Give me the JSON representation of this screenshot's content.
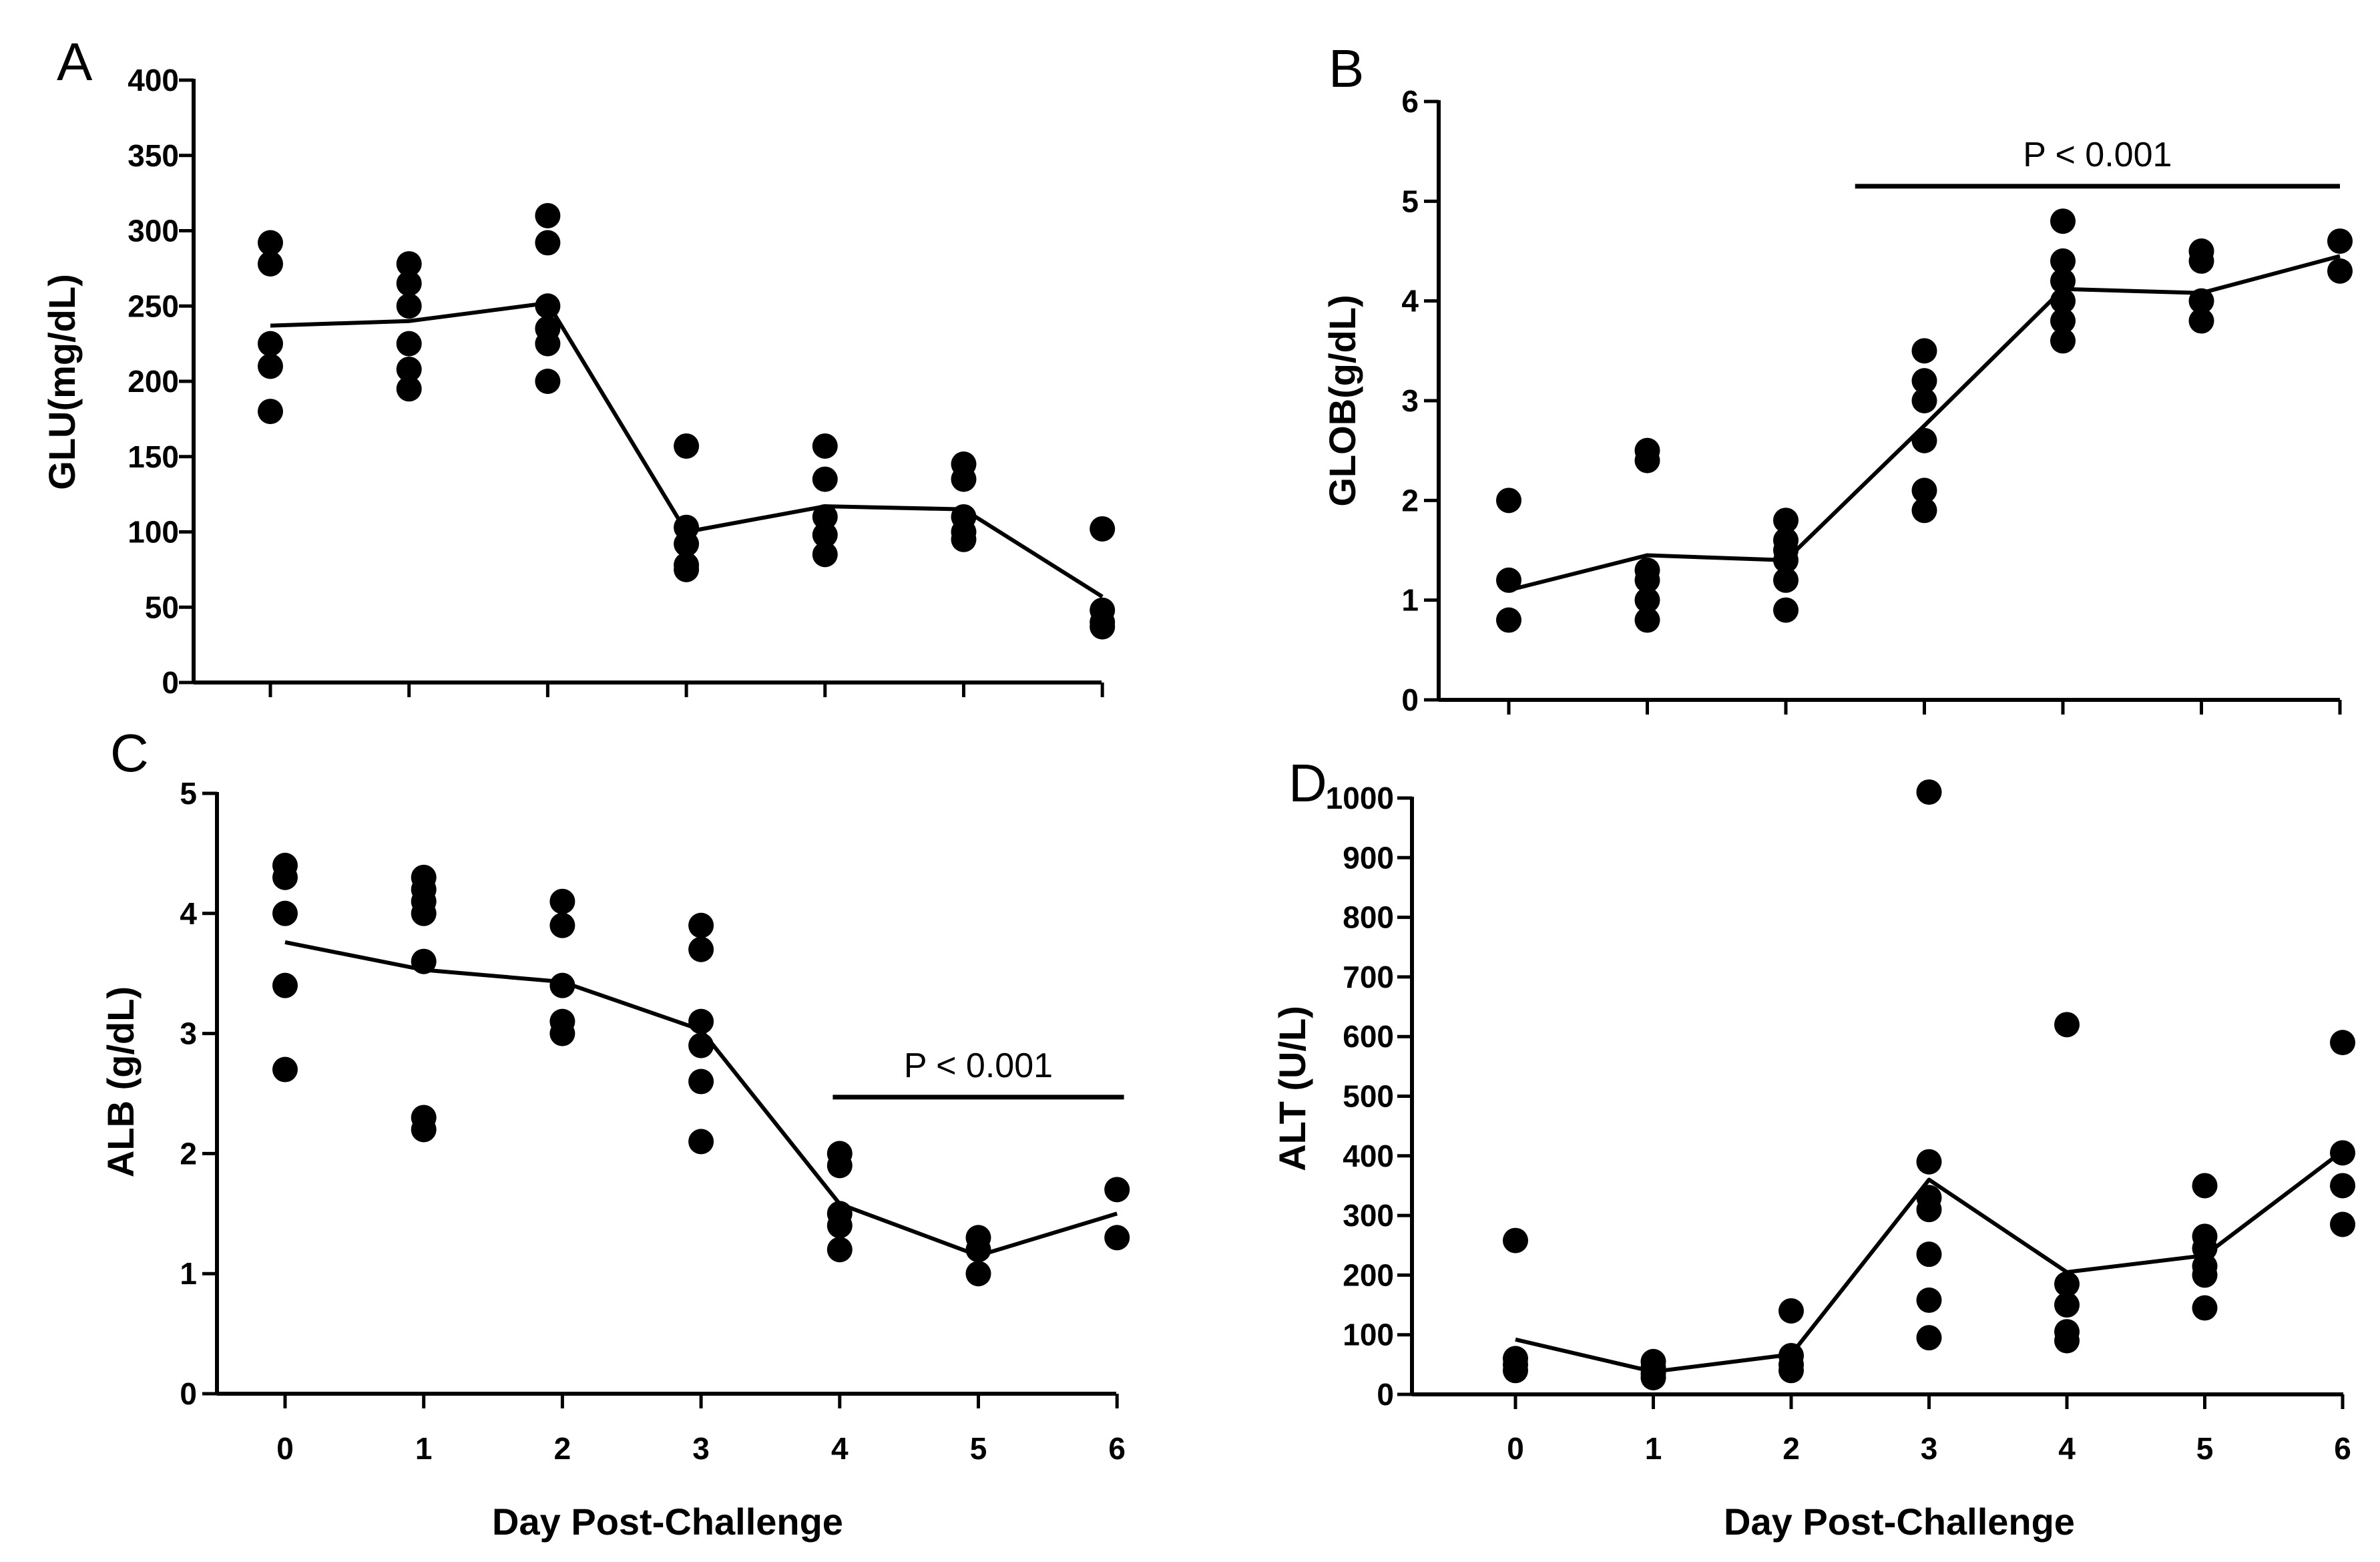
{
  "chart_data": [
    {
      "type": "scatter",
      "panel": "A",
      "ylabel": "GLU(mg/dL)",
      "xlabel": "",
      "ylim": [
        0,
        400
      ],
      "yticks": [
        0,
        50,
        100,
        150,
        200,
        250,
        300,
        350,
        400
      ],
      "ytick_labels": [
        "0",
        "50",
        "100",
        "150",
        "200",
        "250",
        "300",
        "350",
        "400"
      ],
      "x_categories": [
        0,
        1,
        2,
        3,
        4,
        5,
        6
      ],
      "xtick_labels": [],
      "points": [
        {
          "x": 0,
          "y": [
            292,
            278,
            225,
            210,
            180
          ]
        },
        {
          "x": 1,
          "y": [
            278,
            265,
            250,
            225,
            208,
            195
          ]
        },
        {
          "x": 2,
          "y": [
            310,
            292,
            250,
            235,
            225,
            200
          ]
        },
        {
          "x": 3,
          "y": [
            157,
            103,
            92,
            78,
            75
          ]
        },
        {
          "x": 4,
          "y": [
            157,
            135,
            110,
            98,
            85
          ]
        },
        {
          "x": 5,
          "y": [
            145,
            135,
            110,
            100,
            95
          ]
        },
        {
          "x": 6,
          "y": [
            102,
            48,
            40,
            37
          ]
        }
      ],
      "mean_line": [
        237,
        240,
        252,
        100,
        117,
        115,
        57
      ],
      "significance": []
    },
    {
      "type": "scatter",
      "panel": "B",
      "ylabel": "GLOB(g/dL)",
      "xlabel": "",
      "ylim": [
        0,
        6
      ],
      "yticks": [
        0,
        1,
        2,
        3,
        4,
        5,
        6
      ],
      "ytick_labels": [
        "0",
        "1",
        "2",
        "3",
        "4",
        "5",
        "6"
      ],
      "x_categories": [
        0,
        1,
        2,
        3,
        4,
        5,
        6
      ],
      "xtick_labels": [],
      "points": [
        {
          "x": 0,
          "y": [
            2.0,
            1.2,
            0.8
          ]
        },
        {
          "x": 1,
          "y": [
            2.5,
            2.4,
            1.3,
            1.2,
            1.0,
            0.8
          ]
        },
        {
          "x": 2,
          "y": [
            1.8,
            1.6,
            1.5,
            1.4,
            1.2,
            0.9
          ]
        },
        {
          "x": 3,
          "y": [
            3.5,
            3.2,
            3.0,
            2.6,
            2.1,
            1.9
          ]
        },
        {
          "x": 4,
          "y": [
            4.8,
            4.4,
            4.2,
            4.0,
            3.8,
            3.6
          ]
        },
        {
          "x": 5,
          "y": [
            4.5,
            4.4,
            4.0,
            3.8
          ]
        },
        {
          "x": 6,
          "y": [
            4.6,
            4.3
          ]
        }
      ],
      "mean_line": [
        1.1,
        1.45,
        1.4,
        2.75,
        4.12,
        4.08,
        4.45
      ],
      "significance": [
        {
          "from_x": 2.5,
          "to_x": 6,
          "y": 5.15,
          "label": "P < 0.001"
        }
      ]
    },
    {
      "type": "scatter",
      "panel": "C",
      "ylabel": "ALB (g/dL)",
      "xlabel": "Day Post-Challenge",
      "ylim": [
        0,
        5
      ],
      "yticks": [
        0,
        1,
        2,
        3,
        4,
        5
      ],
      "ytick_labels": [
        "0",
        "1",
        "2",
        "3",
        "4",
        "5"
      ],
      "x_categories": [
        0,
        1,
        2,
        3,
        4,
        5,
        6
      ],
      "xtick_labels": [
        "0",
        "1",
        "2",
        "3",
        "4",
        "5",
        "6"
      ],
      "points": [
        {
          "x": 0,
          "y": [
            4.4,
            4.3,
            4.0,
            3.4,
            2.7
          ]
        },
        {
          "x": 1,
          "y": [
            4.3,
            4.2,
            4.1,
            4.0,
            3.6,
            2.3,
            2.2
          ]
        },
        {
          "x": 2,
          "y": [
            4.1,
            3.9,
            3.4,
            3.1,
            3.0
          ]
        },
        {
          "x": 3,
          "y": [
            3.9,
            3.7,
            3.1,
            2.9,
            2.6,
            2.1
          ]
        },
        {
          "x": 4,
          "y": [
            2.0,
            1.9,
            1.5,
            1.4,
            1.2
          ]
        },
        {
          "x": 5,
          "y": [
            1.3,
            1.2,
            1.0
          ]
        },
        {
          "x": 6,
          "y": [
            1.7,
            1.3
          ]
        }
      ],
      "mean_line": [
        3.76,
        3.53,
        3.43,
        3.03,
        1.58,
        1.15,
        1.5
      ],
      "significance": [
        {
          "from_x": 3.95,
          "to_x": 6.05,
          "y": 2.47,
          "label": "P < 0.001"
        }
      ]
    },
    {
      "type": "scatter",
      "panel": "D",
      "ylabel": "ALT (U/L)",
      "xlabel": "Day Post-Challenge",
      "ylim": [
        0,
        1020
      ],
      "yticks": [
        0,
        100,
        200,
        300,
        400,
        500,
        600,
        700,
        800,
        900,
        1000
      ],
      "ytick_labels": [
        "0",
        "100",
        "200",
        "300",
        "400",
        "500",
        "600",
        "700",
        "800",
        "900",
        "1000"
      ],
      "x_categories": [
        0,
        1,
        2,
        3,
        4,
        5,
        6
      ],
      "xtick_labels": [
        "0",
        "1",
        "2",
        "3",
        "4",
        "5",
        "6"
      ],
      "points": [
        {
          "x": 0,
          "y": [
            258,
            60,
            50,
            40
          ]
        },
        {
          "x": 1,
          "y": [
            55,
            45,
            35,
            28
          ]
        },
        {
          "x": 2,
          "y": [
            140,
            65,
            50,
            40
          ]
        },
        {
          "x": 3,
          "y": [
            1010,
            390,
            330,
            310,
            235,
            158,
            95
          ]
        },
        {
          "x": 4,
          "y": [
            620,
            185,
            150,
            105,
            90
          ]
        },
        {
          "x": 5,
          "y": [
            350,
            265,
            245,
            215,
            200,
            145
          ]
        },
        {
          "x": 6,
          "y": [
            590,
            405,
            350,
            285
          ]
        }
      ],
      "mean_line": [
        92,
        38,
        67,
        360,
        205,
        233,
        408
      ],
      "significance": []
    }
  ]
}
